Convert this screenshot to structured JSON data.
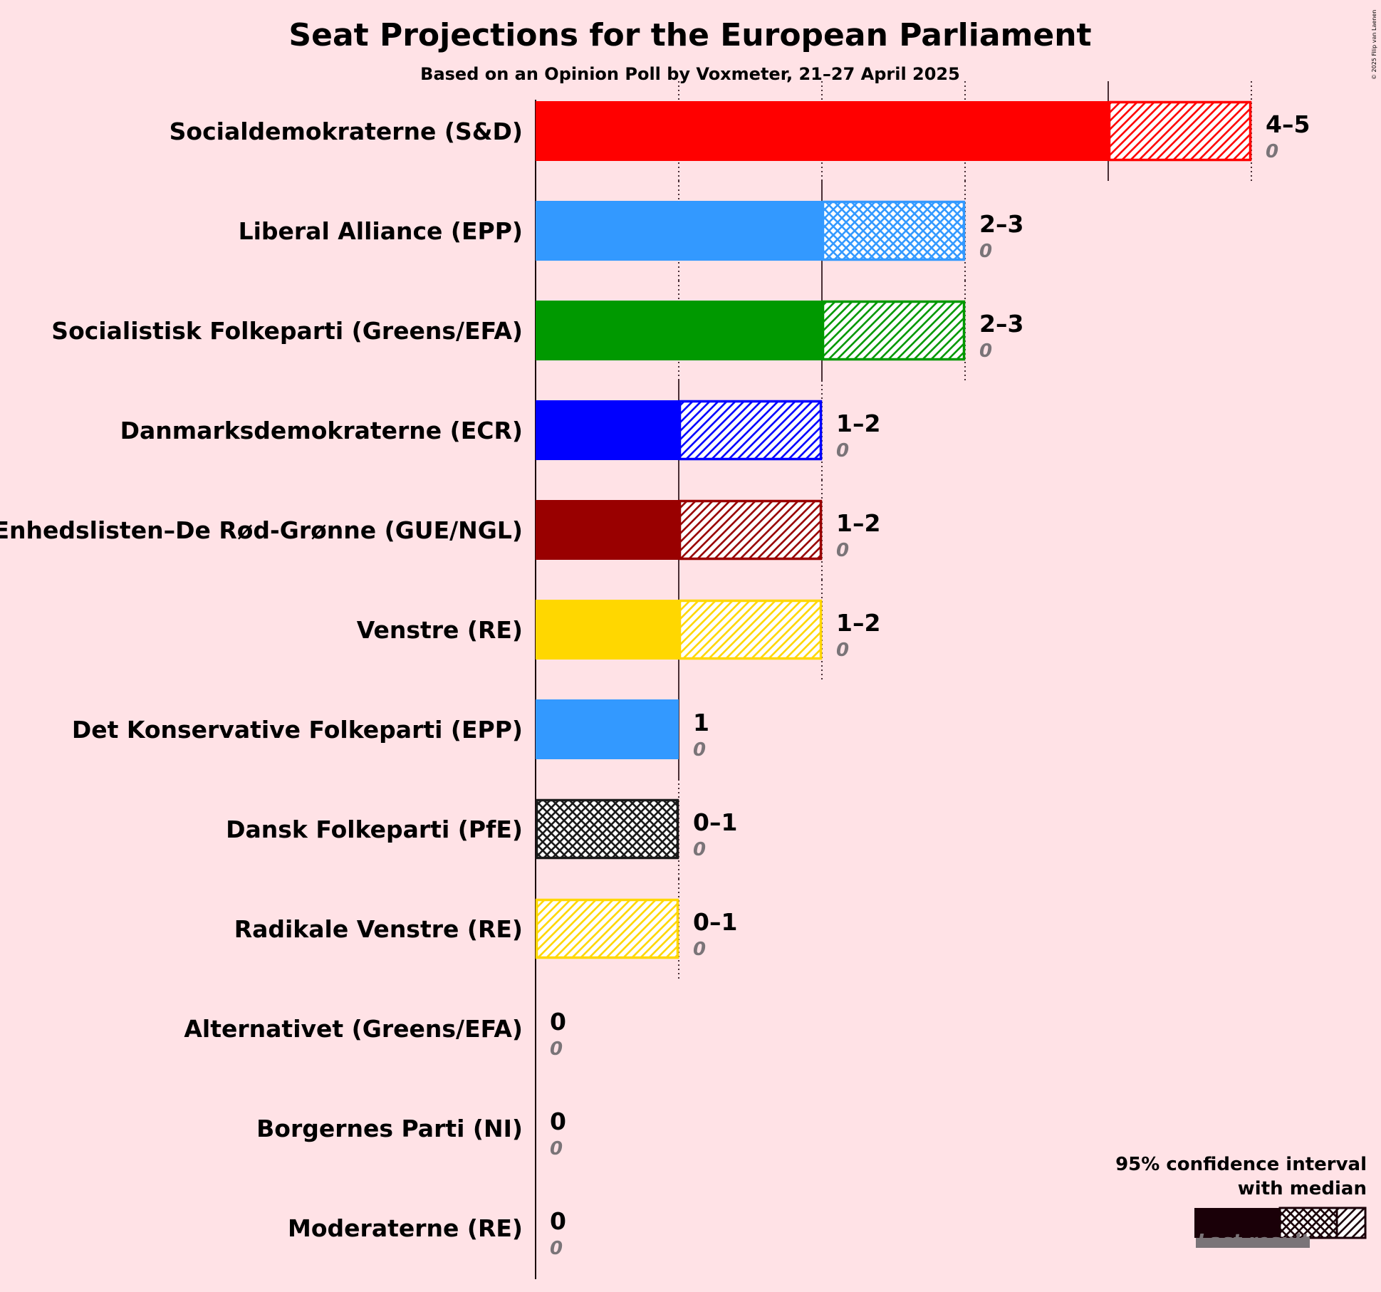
{
  "title": "Seat Projections for the European Parliament",
  "subtitle": "Based on an Opinion Poll by Voxmeter, 21–27 April 2025",
  "copyright": "© 2025 Filip van Laenen",
  "legend": {
    "title_line1": "95% confidence interval",
    "title_line2": "with median",
    "last_result": "Last result"
  },
  "chart_data": {
    "type": "bar",
    "orientation": "horizontal",
    "title": "Seat Projections for the European Parliament",
    "subtitle": "Based on an Opinion Poll by Voxmeter, 21–27 April 2025",
    "xlim": [
      0,
      5
    ],
    "parties": [
      {
        "name": "Socialdemokraterne (S&D)",
        "low": 4,
        "median": 4,
        "high": 5,
        "label": "4–5",
        "last": "0",
        "color": "#FF0000",
        "pattern": "hatch"
      },
      {
        "name": "Liberal Alliance (EPP)",
        "low": 2,
        "median": 2,
        "high": 3,
        "label": "2–3",
        "last": "0",
        "color": "#3399FF",
        "pattern": "cross"
      },
      {
        "name": "Socialistisk Folkeparti (Greens/EFA)",
        "low": 2,
        "median": 2,
        "high": 3,
        "label": "2–3",
        "last": "0",
        "color": "#009900",
        "pattern": "hatch"
      },
      {
        "name": "Danmarksdemokraterne (ECR)",
        "low": 1,
        "median": 1,
        "high": 2,
        "label": "1–2",
        "last": "0",
        "color": "#0000FF",
        "pattern": "hatch"
      },
      {
        "name": "Enhedslisten–De Rød-Grønne (GUE/NGL)",
        "low": 1,
        "median": 1,
        "high": 2,
        "label": "1–2",
        "last": "0",
        "color": "#990000",
        "pattern": "hatch"
      },
      {
        "name": "Venstre (RE)",
        "low": 1,
        "median": 1,
        "high": 2,
        "label": "1–2",
        "last": "0",
        "color": "#FFD700",
        "pattern": "hatch"
      },
      {
        "name": "Det Konservative Folkeparti (EPP)",
        "low": 1,
        "median": 1,
        "high": 1,
        "label": "1",
        "last": "0",
        "color": "#3399FF",
        "pattern": "none"
      },
      {
        "name": "Dansk Folkeparti (PfE)",
        "low": 0,
        "median": 0,
        "high": 1,
        "label": "0–1",
        "last": "0",
        "color": "#1A1A1A",
        "pattern": "cross"
      },
      {
        "name": "Radikale Venstre (RE)",
        "low": 0,
        "median": 0,
        "high": 1,
        "label": "0–1",
        "last": "0",
        "color": "#FFD700",
        "pattern": "hatch"
      },
      {
        "name": "Alternativet (Greens/EFA)",
        "low": 0,
        "median": 0,
        "high": 0,
        "label": "0",
        "last": "0",
        "color": "#009900",
        "pattern": "none"
      },
      {
        "name": "Borgernes Parti (NI)",
        "low": 0,
        "median": 0,
        "high": 0,
        "label": "0",
        "last": "0",
        "color": "#888888",
        "pattern": "none"
      },
      {
        "name": "Moderaterne (RE)",
        "low": 0,
        "median": 0,
        "high": 0,
        "label": "0",
        "last": "0",
        "color": "#8844AA",
        "pattern": "none"
      }
    ]
  }
}
